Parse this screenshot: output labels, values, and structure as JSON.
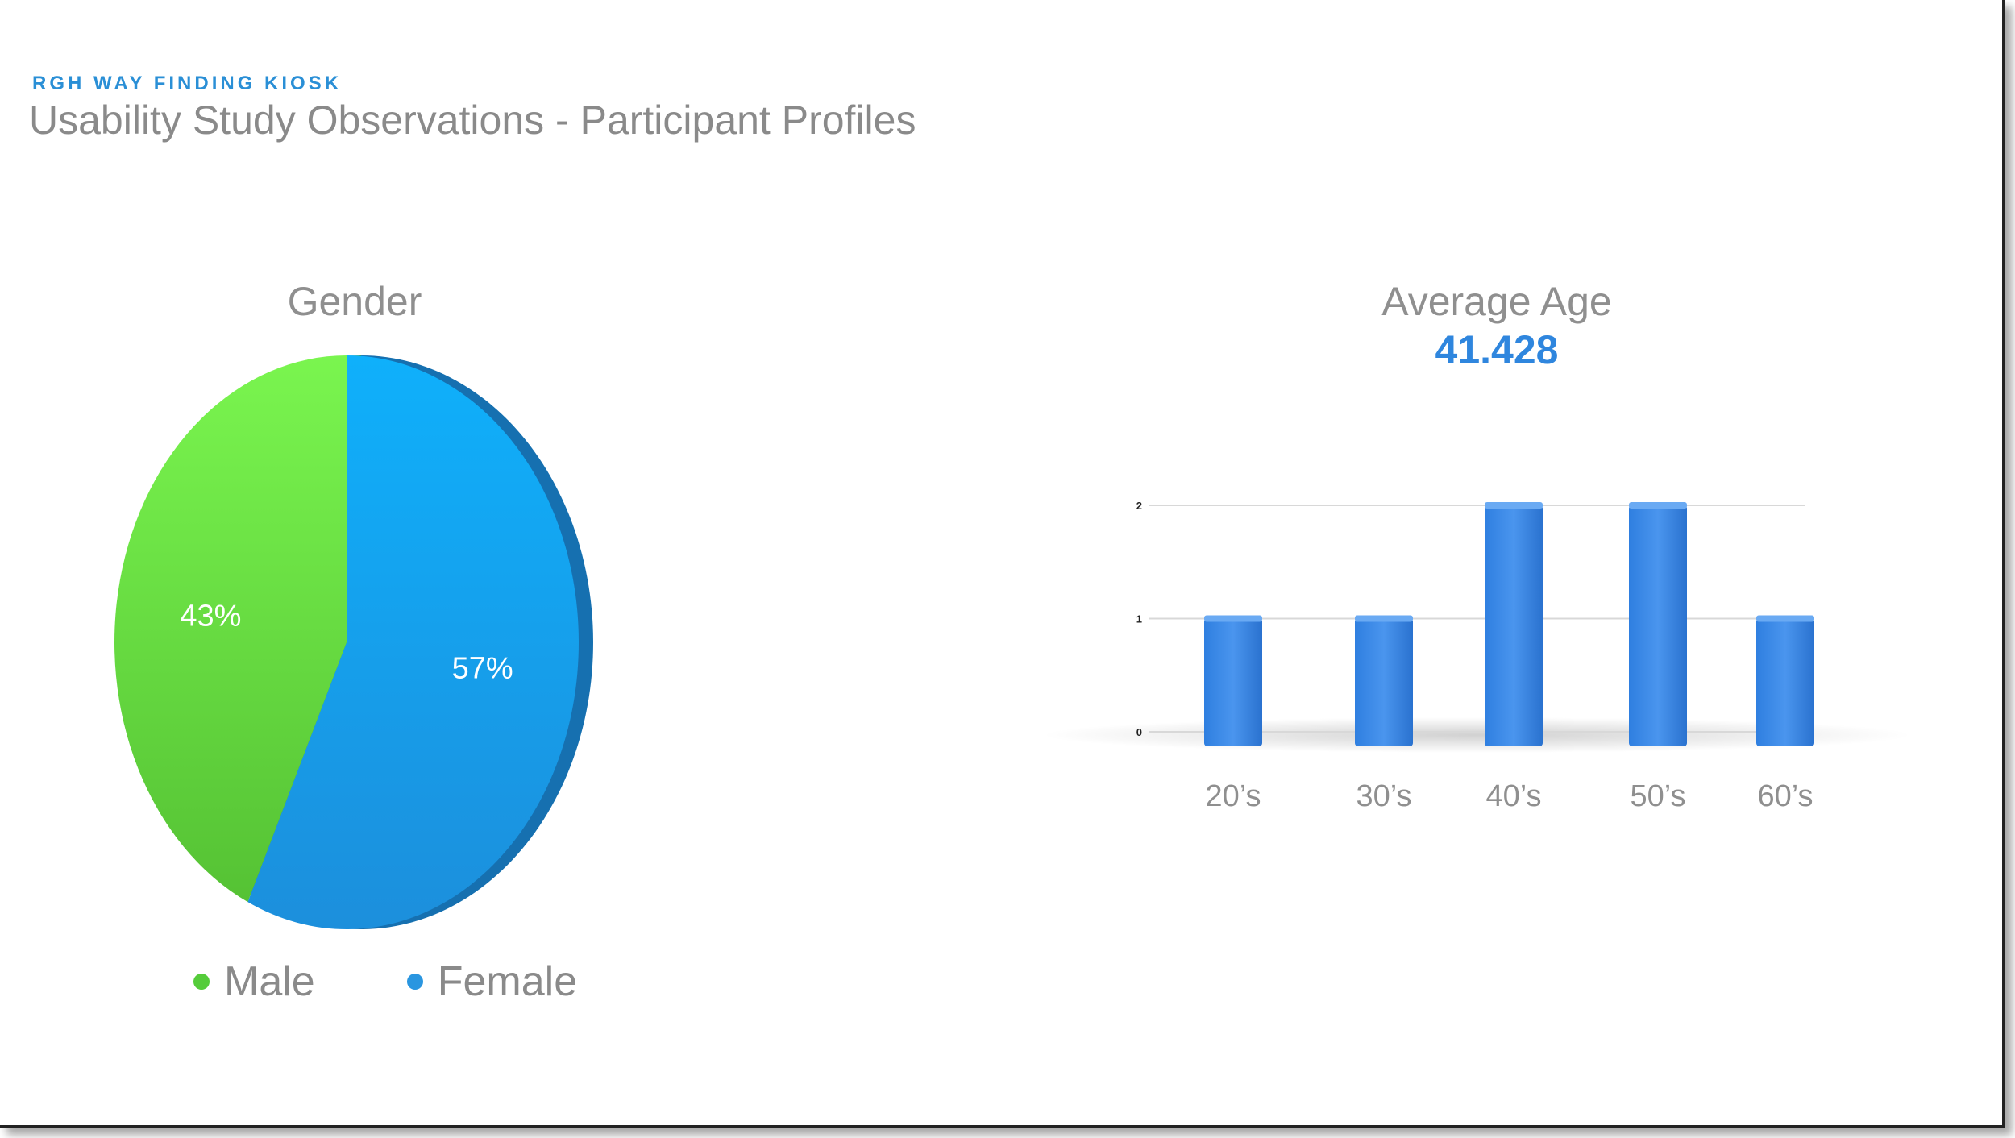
{
  "header": {
    "kicker": "RGH WAY FINDING KIOSK",
    "title": "Usability Study Observations - Participant Profiles"
  },
  "chart_data": [
    {
      "type": "pie",
      "title": "Gender",
      "slices": [
        {
          "name": "Male",
          "value": 43,
          "label": "43%",
          "color": "#6ee84a"
        },
        {
          "name": "Female",
          "value": 57,
          "label": "57%",
          "color": "#1aa8f5"
        }
      ],
      "legend": "bottom"
    },
    {
      "type": "bar",
      "title": "Average Age",
      "subtitle": "41.428",
      "categories": [
        "20’s",
        "30’s",
        "40’s",
        "50’s",
        "60’s"
      ],
      "values": [
        1,
        1,
        2,
        2,
        1
      ],
      "ylim": [
        0,
        2
      ],
      "yticks": [
        "0",
        "1",
        "2"
      ],
      "grid": true,
      "color": "#3a86e6"
    }
  ]
}
